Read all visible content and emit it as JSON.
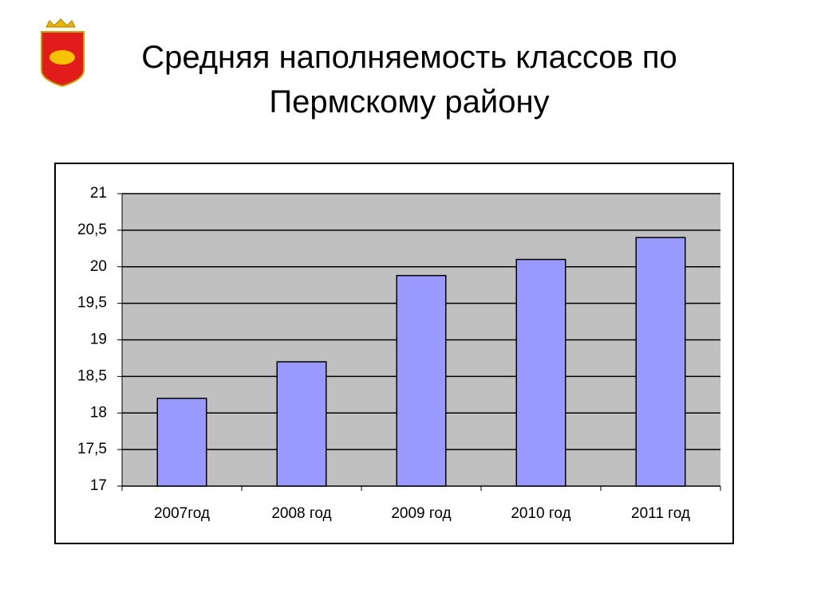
{
  "chart_data": {
    "type": "bar",
    "title": "Средняя наполняемость классов по Пермскому району",
    "categories": [
      "2007год",
      "2008 год",
      "2009 год",
      "2010 год",
      "2011 год"
    ],
    "values": [
      18.2,
      18.7,
      19.88,
      20.1,
      20.4
    ],
    "color": "#9999ff",
    "ylim": [
      17,
      21
    ],
    "yticks": [
      17,
      {
        "value": 17.5,
        "label": "17,5"
      },
      18,
      {
        "value": 18.5,
        "label": "18,5"
      },
      19,
      {
        "value": 19.5,
        "label": "19,5"
      },
      20,
      {
        "value": 20.5,
        "label": "20,5"
      },
      21
    ],
    "grid": true
  }
}
